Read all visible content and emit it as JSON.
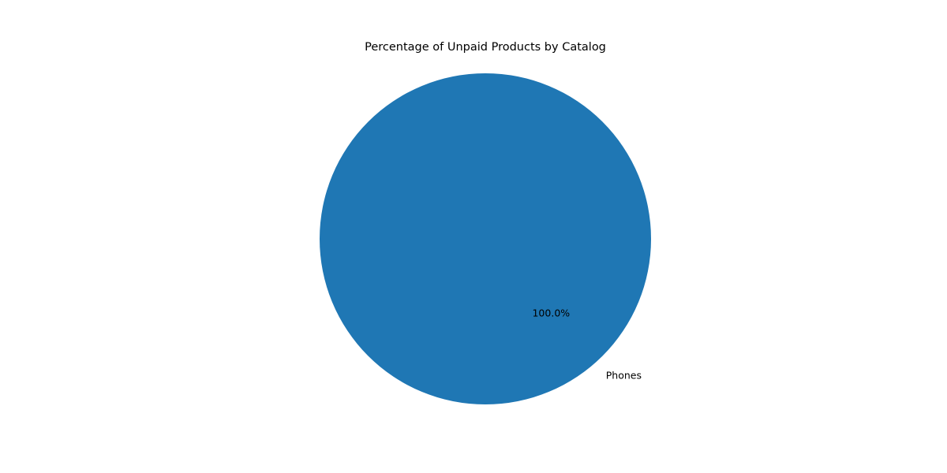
{
  "chart_data": {
    "type": "pie",
    "title": "Percentage of Unpaid Products by Catalog",
    "categories": [
      "Phones"
    ],
    "values": [
      100.0
    ],
    "value_labels": [
      "100.0%"
    ],
    "colors": [
      "#1f77b4"
    ],
    "legend": "none"
  }
}
